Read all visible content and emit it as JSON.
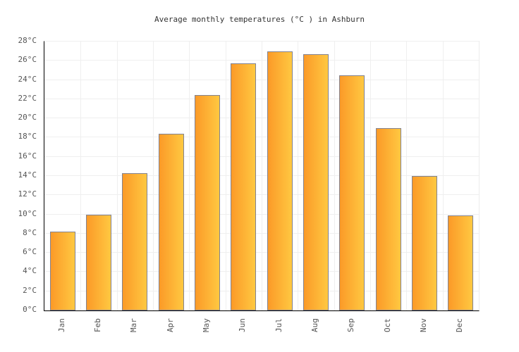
{
  "title": "Average monthly temperatures (°C ) in Ashburn",
  "chart_data": {
    "type": "bar",
    "title": "Average monthly temperatures (°C ) in Ashburn",
    "categories": [
      "Jan",
      "Feb",
      "Mar",
      "Apr",
      "May",
      "Jun",
      "Jul",
      "Aug",
      "Sep",
      "Oct",
      "Nov",
      "Dec"
    ],
    "values": [
      8.2,
      10.0,
      14.3,
      18.4,
      22.4,
      25.7,
      27.0,
      26.7,
      24.5,
      19.0,
      14.0,
      9.9
    ],
    "xlabel": "",
    "ylabel": "",
    "ylim": [
      0,
      28
    ],
    "ytick_step": 2,
    "ytick_suffix": "°C",
    "grid": true,
    "legend_position": "none",
    "colors": {
      "bar_gradient_left": "#fb9a28",
      "bar_gradient_right": "#ffc841",
      "bar_border": "#828290",
      "gridline": "#efefef",
      "axis_line": "#000000",
      "tick_label": "#555555",
      "title_text": "#333333",
      "plot_background": "#ffffff"
    }
  }
}
